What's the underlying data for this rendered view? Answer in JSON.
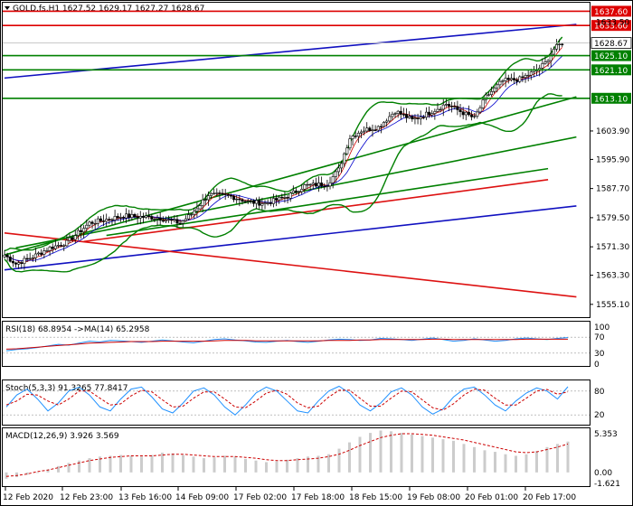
{
  "header": {
    "symbol_line": "GOLD.fs,H1  1627.52 1629.17 1627.27 1628.67"
  },
  "colors": {
    "bg": "#ffffff",
    "grid": "#c8c8c8",
    "frame": "#000000",
    "bull": "#000000",
    "bear": "#000000",
    "sma_fast": "#cc0000",
    "sma_mid": "#0000cc",
    "bb": "#008000",
    "trend_blue": "#1010c0",
    "trend_red": "#dd1111",
    "trend_green": "#008000",
    "level_red": "#dd0000",
    "level_green": "#008000",
    "rsi": "#1e90ff",
    "rsi_ma": "#cc0000",
    "stoch_main": "#1e90ff",
    "stoch_signal": "#cc0000",
    "macd_hist": "#cccccc",
    "macd_signal": "#cc0000"
  },
  "chart_data": [
    {
      "type": "candlestick",
      "symbol": "GOLD.fs",
      "timeframe": "H1",
      "ohlc_current": {
        "open": 1627.52,
        "high": 1629.17,
        "low": 1627.27,
        "close": 1628.67
      },
      "ylim": [
        1551.5,
        1640.0
      ],
      "y_ticks": [
        "1633.50",
        "1628.67",
        "1625.10",
        "1621.10",
        "1613.10",
        "1603.90",
        "1595.90",
        "1587.70",
        "1579.50",
        "1571.30",
        "1563.30",
        "1555.10"
      ],
      "x_ticks": [
        "12 Feb 2020",
        "12 Feb 23:00",
        "13 Feb 16:00",
        "14 Feb 09:00",
        "17 Feb 02:00",
        "17 Feb 18:00",
        "18 Feb 15:00",
        "19 Feb 08:00",
        "20 Feb 01:00",
        "20 Feb 17:00"
      ],
      "price_path": [
        {
          "t": 0,
          "p": 1569.0
        },
        {
          "t": 4,
          "p": 1566.5
        },
        {
          "t": 10,
          "p": 1568.5
        },
        {
          "t": 16,
          "p": 1571.0
        },
        {
          "t": 22,
          "p": 1572.5
        },
        {
          "t": 30,
          "p": 1578.0
        },
        {
          "t": 42,
          "p": 1580.0
        },
        {
          "t": 54,
          "p": 1579.5
        },
        {
          "t": 62,
          "p": 1578.0
        },
        {
          "t": 66,
          "p": 1580.5
        },
        {
          "t": 72,
          "p": 1586.0
        },
        {
          "t": 80,
          "p": 1585.5
        },
        {
          "t": 86,
          "p": 1584.0
        },
        {
          "t": 92,
          "p": 1583.5
        },
        {
          "t": 100,
          "p": 1585.5
        },
        {
          "t": 106,
          "p": 1588.5
        },
        {
          "t": 114,
          "p": 1589.0
        },
        {
          "t": 118,
          "p": 1593.0
        },
        {
          "t": 122,
          "p": 1602.0
        },
        {
          "t": 126,
          "p": 1604.0
        },
        {
          "t": 132,
          "p": 1605.0
        },
        {
          "t": 138,
          "p": 1609.5
        },
        {
          "t": 144,
          "p": 1607.0
        },
        {
          "t": 150,
          "p": 1609.0
        },
        {
          "t": 156,
          "p": 1611.5
        },
        {
          "t": 162,
          "p": 1609.0
        },
        {
          "t": 166,
          "p": 1607.5
        },
        {
          "t": 170,
          "p": 1613.5
        },
        {
          "t": 176,
          "p": 1618.0
        },
        {
          "t": 182,
          "p": 1618.5
        },
        {
          "t": 188,
          "p": 1621.0
        },
        {
          "t": 191,
          "p": 1623.0
        },
        {
          "t": 194,
          "p": 1627.0
        },
        {
          "t": 197,
          "p": 1628.67
        }
      ],
      "levels": [
        {
          "label": "1637.60",
          "value": 1637.6,
          "color": "red"
        },
        {
          "label": "1633.60",
          "value": 1633.6,
          "color": "red"
        },
        {
          "label": "1625.10",
          "value": 1625.1,
          "color": "green"
        },
        {
          "label": "1621.10",
          "value": 1621.1,
          "color": "green"
        },
        {
          "label": "1613.10",
          "value": 1613.1,
          "color": "green"
        }
      ],
      "current_price_label": "1628.67",
      "trendlines": [
        {
          "color": "blue",
          "t0": 0,
          "p0": 1618.8,
          "t1": 202,
          "p1": 1633.9
        },
        {
          "color": "blue",
          "t0": 0,
          "p0": 1564.8,
          "t1": 202,
          "p1": 1582.8
        },
        {
          "color": "red",
          "t0": 0,
          "p0": 1575.2,
          "t1": 202,
          "p1": 1557.2
        },
        {
          "color": "red",
          "t0": 28,
          "p0": 1572.8,
          "t1": 192,
          "p1": 1590.2
        },
        {
          "color": "green",
          "t0": 0,
          "p0": 1569.0,
          "t1": 202,
          "p1": 1613.5
        },
        {
          "color": "green",
          "t0": 4,
          "p0": 1571.0,
          "t1": 202,
          "p1": 1602.2
        },
        {
          "color": "green",
          "t0": 36,
          "p0": 1574.5,
          "t1": 192,
          "p1": 1593.3
        }
      ]
    },
    {
      "type": "line",
      "title": "RSI(18) 68.8954  ->MA(14) 65.2958",
      "ylim": [
        0,
        100
      ],
      "y_ticks": [
        "100",
        "70",
        "30",
        "0"
      ],
      "series": [
        {
          "values": [
            36,
            39,
            41,
            44,
            48,
            52,
            50,
            55,
            60,
            58,
            62,
            61,
            59,
            57,
            60,
            63,
            61,
            58,
            56,
            60,
            64,
            66,
            63,
            61,
            58,
            57,
            60,
            62,
            59,
            57,
            60,
            63,
            65,
            64,
            62,
            63,
            67,
            66,
            64,
            62,
            65,
            68,
            64,
            60,
            62,
            66,
            63,
            60,
            62,
            66,
            68,
            66,
            64,
            67,
            69
          ]
        },
        {
          "values": [
            40,
            41,
            43,
            45,
            47,
            49,
            51,
            53,
            55,
            56,
            57,
            58,
            59,
            59,
            59,
            60,
            60,
            60,
            60,
            60,
            61,
            62,
            62,
            62,
            61,
            61,
            61,
            61,
            61,
            61,
            61,
            62,
            62,
            62,
            63,
            63,
            64,
            64,
            64,
            64,
            64,
            65,
            65,
            64,
            64,
            64,
            64,
            64,
            64,
            64,
            65,
            65,
            65,
            65,
            65
          ]
        }
      ]
    },
    {
      "type": "line",
      "title": "Stoch(5,3,3) 91.3265 77.8417",
      "ylim": [
        0,
        100
      ],
      "y_ticks": [
        "80",
        "20"
      ],
      "series": [
        {
          "values": [
            40,
            70,
            85,
            60,
            30,
            50,
            80,
            90,
            70,
            40,
            30,
            60,
            85,
            90,
            65,
            35,
            25,
            50,
            80,
            88,
            70,
            40,
            20,
            45,
            75,
            90,
            80,
            55,
            30,
            25,
            55,
            80,
            92,
            75,
            45,
            30,
            50,
            78,
            88,
            70,
            40,
            22,
            35,
            65,
            85,
            90,
            70,
            45,
            30,
            55,
            75,
            88,
            80,
            60,
            91
          ]
        },
        {
          "values": [
            45,
            55,
            72,
            70,
            55,
            45,
            60,
            80,
            80,
            62,
            45,
            48,
            68,
            82,
            78,
            58,
            40,
            42,
            62,
            78,
            78,
            60,
            40,
            38,
            55,
            75,
            82,
            72,
            50,
            38,
            42,
            65,
            82,
            82,
            62,
            42,
            42,
            62,
            80,
            78,
            58,
            38,
            32,
            48,
            70,
            85,
            82,
            62,
            45,
            45,
            62,
            80,
            84,
            72,
            78
          ]
        }
      ]
    },
    {
      "type": "bar",
      "title": "MACD(12,26,9) 3.926 3.569",
      "ylim": [
        -1.621,
        5.353
      ],
      "y_ticks": [
        "5.353",
        "0.00",
        "-1.621"
      ],
      "series": [
        {
          "name": "MACD",
          "values": [
            -0.8,
            -0.6,
            -0.3,
            0.0,
            0.4,
            0.8,
            1.2,
            1.5,
            1.8,
            2.0,
            2.1,
            2.2,
            2.1,
            2.0,
            2.2,
            2.5,
            2.4,
            2.2,
            2.0,
            1.8,
            1.9,
            2.1,
            2.0,
            1.7,
            1.5,
            1.3,
            1.4,
            1.6,
            1.8,
            2.0,
            2.1,
            2.3,
            3.0,
            3.8,
            4.5,
            5.0,
            5.3,
            5.2,
            5.0,
            4.8,
            4.6,
            4.4,
            4.2,
            4.0,
            3.6,
            3.2,
            2.8,
            2.6,
            2.3,
            2.1,
            2.3,
            2.7,
            3.2,
            3.6,
            3.9
          ]
        },
        {
          "name": "Signal",
          "values": [
            -0.5,
            -0.4,
            -0.2,
            0.1,
            0.3,
            0.6,
            0.9,
            1.2,
            1.5,
            1.7,
            1.9,
            2.0,
            2.1,
            2.1,
            2.1,
            2.2,
            2.3,
            2.3,
            2.2,
            2.1,
            2.0,
            2.0,
            2.0,
            1.9,
            1.8,
            1.6,
            1.5,
            1.5,
            1.6,
            1.7,
            1.8,
            2.0,
            2.3,
            2.8,
            3.4,
            3.9,
            4.4,
            4.7,
            4.9,
            4.9,
            4.8,
            4.7,
            4.5,
            4.3,
            4.1,
            3.8,
            3.5,
            3.2,
            2.9,
            2.6,
            2.5,
            2.6,
            2.9,
            3.2,
            3.6
          ]
        }
      ]
    }
  ]
}
